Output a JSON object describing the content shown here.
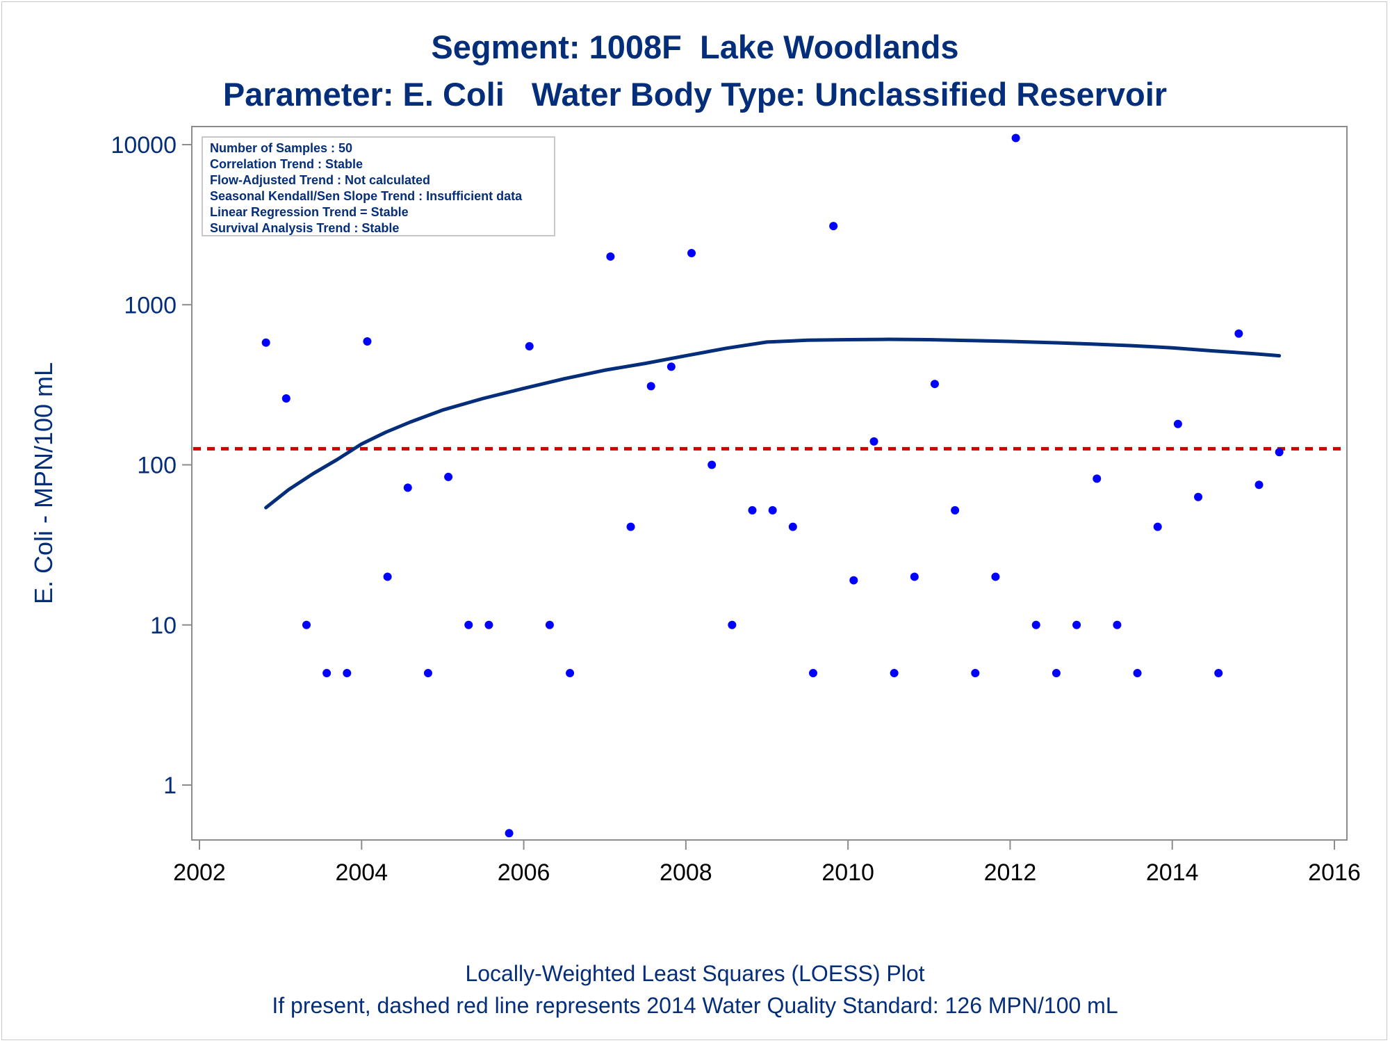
{
  "chart_data": {
    "type": "scatter",
    "title": "Segment: 1008F  Lake Woodlands",
    "subtitle": "Parameter: E. Coli   Water Body Type: Unclassified Reservoir",
    "ylabel": "E. Coli - MPN/100 mL",
    "xlabel": "",
    "x_scale": "linear",
    "y_scale": "log",
    "xlim": [
      2002,
      2016
    ],
    "ylim": [
      0.45,
      15000
    ],
    "x_ticks": [
      2002,
      2004,
      2006,
      2008,
      2010,
      2012,
      2014,
      2016
    ],
    "x_tick_labels": [
      "2002",
      "2004",
      "2006",
      "2008",
      "2010",
      "2012",
      "2014",
      "2016"
    ],
    "y_ticks": [
      1,
      10,
      100,
      1000,
      10000
    ],
    "y_tick_labels": [
      "1",
      "10",
      "100",
      "1000",
      "10000"
    ],
    "grid": false,
    "stats_box": {
      "placement": "top-left",
      "lines": [
        "Number of Samples : 50",
        "Correlation Trend : Stable",
        "Flow-Adjusted Trend : Not calculated",
        "Seasonal Kendall/Sen Slope Trend : Insufficient data",
        "Linear Regression Trend = Stable",
        "Survival Analysis Trend : Stable"
      ]
    },
    "standard_line": {
      "y": 126,
      "color": "#d40000",
      "style": "dashed"
    },
    "points_color": "#0000ff",
    "loess_color": "#052e7a",
    "points": [
      {
        "x": 2002.82,
        "y": 580
      },
      {
        "x": 2003.07,
        "y": 260
      },
      {
        "x": 2003.32,
        "y": 10
      },
      {
        "x": 2003.57,
        "y": 5
      },
      {
        "x": 2003.82,
        "y": 5
      },
      {
        "x": 2004.07,
        "y": 590
      },
      {
        "x": 2004.32,
        "y": 20
      },
      {
        "x": 2004.57,
        "y": 72
      },
      {
        "x": 2004.82,
        "y": 5
      },
      {
        "x": 2005.07,
        "y": 84
      },
      {
        "x": 2005.32,
        "y": 10
      },
      {
        "x": 2005.57,
        "y": 10
      },
      {
        "x": 2005.82,
        "y": 0.5
      },
      {
        "x": 2006.07,
        "y": 550
      },
      {
        "x": 2006.32,
        "y": 10
      },
      {
        "x": 2006.57,
        "y": 5
      },
      {
        "x": 2007.07,
        "y": 2000
      },
      {
        "x": 2007.32,
        "y": 41
      },
      {
        "x": 2007.57,
        "y": 310
      },
      {
        "x": 2007.82,
        "y": 410
      },
      {
        "x": 2008.07,
        "y": 2100
      },
      {
        "x": 2008.32,
        "y": 100
      },
      {
        "x": 2008.57,
        "y": 10
      },
      {
        "x": 2008.82,
        "y": 52
      },
      {
        "x": 2009.07,
        "y": 52
      },
      {
        "x": 2009.32,
        "y": 41
      },
      {
        "x": 2009.57,
        "y": 5
      },
      {
        "x": 2009.82,
        "y": 3100
      },
      {
        "x": 2010.07,
        "y": 19
      },
      {
        "x": 2010.32,
        "y": 140
      },
      {
        "x": 2010.57,
        "y": 5
      },
      {
        "x": 2010.82,
        "y": 20
      },
      {
        "x": 2011.07,
        "y": 320
      },
      {
        "x": 2011.32,
        "y": 52
      },
      {
        "x": 2011.57,
        "y": 5
      },
      {
        "x": 2011.82,
        "y": 20
      },
      {
        "x": 2012.07,
        "y": 11000
      },
      {
        "x": 2012.32,
        "y": 10
      },
      {
        "x": 2012.57,
        "y": 5
      },
      {
        "x": 2012.82,
        "y": 10
      },
      {
        "x": 2013.07,
        "y": 82
      },
      {
        "x": 2013.32,
        "y": 10
      },
      {
        "x": 2013.57,
        "y": 5
      },
      {
        "x": 2013.82,
        "y": 41
      },
      {
        "x": 2014.07,
        "y": 180
      },
      {
        "x": 2014.32,
        "y": 63
      },
      {
        "x": 2014.57,
        "y": 5
      },
      {
        "x": 2014.82,
        "y": 660
      },
      {
        "x": 2015.07,
        "y": 75
      },
      {
        "x": 2015.32,
        "y": 120
      }
    ],
    "loess_curve": [
      {
        "x": 2002.82,
        "y": 54
      },
      {
        "x": 2003.1,
        "y": 70
      },
      {
        "x": 2003.4,
        "y": 88
      },
      {
        "x": 2003.7,
        "y": 108
      },
      {
        "x": 2004.0,
        "y": 135
      },
      {
        "x": 2004.3,
        "y": 160
      },
      {
        "x": 2004.6,
        "y": 185
      },
      {
        "x": 2005.0,
        "y": 220
      },
      {
        "x": 2005.5,
        "y": 260
      },
      {
        "x": 2006.0,
        "y": 300
      },
      {
        "x": 2006.5,
        "y": 345
      },
      {
        "x": 2007.0,
        "y": 390
      },
      {
        "x": 2007.5,
        "y": 430
      },
      {
        "x": 2008.0,
        "y": 480
      },
      {
        "x": 2008.5,
        "y": 535
      },
      {
        "x": 2009.0,
        "y": 585
      },
      {
        "x": 2009.5,
        "y": 600
      },
      {
        "x": 2010.0,
        "y": 605
      },
      {
        "x": 2010.5,
        "y": 608
      },
      {
        "x": 2011.0,
        "y": 605
      },
      {
        "x": 2011.5,
        "y": 598
      },
      {
        "x": 2012.0,
        "y": 590
      },
      {
        "x": 2012.5,
        "y": 580
      },
      {
        "x": 2013.0,
        "y": 568
      },
      {
        "x": 2013.5,
        "y": 555
      },
      {
        "x": 2014.0,
        "y": 538
      },
      {
        "x": 2014.5,
        "y": 515
      },
      {
        "x": 2015.0,
        "y": 495
      },
      {
        "x": 2015.32,
        "y": 480
      }
    ],
    "footnotes": [
      "Locally-Weighted Least Squares (LOESS) Plot",
      "If present, dashed red line represents 2014 Water Quality Standard: 126 MPN/100 mL"
    ]
  }
}
